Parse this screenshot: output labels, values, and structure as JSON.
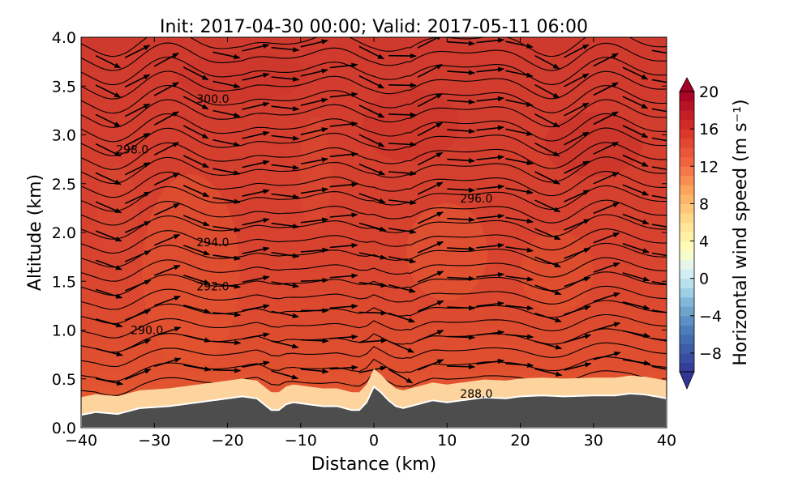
{
  "chart_data": {
    "type": "heatmap",
    "title": "Init: 2017-04-30 00:00; Valid: 2017-05-11 06:00",
    "xlabel": "Distance (km)",
    "ylabel": "Altitude (km)",
    "xlim": [
      -40,
      40
    ],
    "ylim": [
      0.0,
      4.0
    ],
    "x_ticks": [
      "−40",
      "−30",
      "−20",
      "−10",
      "0",
      "10",
      "20",
      "30",
      "40"
    ],
    "y_ticks": [
      "0.0",
      "0.5",
      "1.0",
      "1.5",
      "2.0",
      "2.5",
      "3.0",
      "3.5",
      "4.0"
    ],
    "colorbar": {
      "label": "Horizontal wind speed (m s⁻¹)",
      "range": [
        -10,
        20
      ],
      "ticks": [
        "−8",
        "−4",
        "0",
        "4",
        "8",
        "12",
        "16",
        "20"
      ],
      "cmap": "RdYlBu_r",
      "extend": "both"
    },
    "fill": {
      "dominant_wind_speed_ms": 15,
      "near_surface_wind_speed_ms": 8
    },
    "terrain": {
      "color": "#4d4d4d",
      "x": [
        -40,
        -38,
        -35,
        -32,
        -28,
        -24,
        -20,
        -18,
        -16,
        -14,
        -13,
        -12,
        -11,
        -9,
        -7,
        -5,
        -3,
        -2,
        -1,
        0,
        1,
        2,
        3,
        4,
        6,
        8,
        10,
        12,
        15,
        18,
        20,
        23,
        26,
        30,
        33,
        35,
        37,
        40
      ],
      "y": [
        0.13,
        0.16,
        0.14,
        0.2,
        0.22,
        0.26,
        0.3,
        0.32,
        0.3,
        0.18,
        0.18,
        0.24,
        0.26,
        0.24,
        0.22,
        0.22,
        0.18,
        0.18,
        0.26,
        0.42,
        0.36,
        0.28,
        0.22,
        0.2,
        0.24,
        0.28,
        0.26,
        0.28,
        0.31,
        0.3,
        0.32,
        0.33,
        0.32,
        0.33,
        0.33,
        0.35,
        0.34,
        0.3
      ]
    },
    "contour_labels": [
      {
        "text": "300.0",
        "x": -22,
        "y": 3.37
      },
      {
        "text": "298.0",
        "x": -33,
        "y": 2.85
      },
      {
        "text": "296.0",
        "x": 14,
        "y": 2.35
      },
      {
        "text": "294.0",
        "x": -22,
        "y": 1.9
      },
      {
        "text": "292.0",
        "x": -22,
        "y": 1.45
      },
      {
        "text": "290.0",
        "x": -31,
        "y": 1.0
      },
      {
        "text": "288.0",
        "x": 14,
        "y": 0.35
      }
    ],
    "wind": {
      "u_ms": 15,
      "x_spacing_km": 4,
      "y_spacing_km": 0.3
    }
  }
}
